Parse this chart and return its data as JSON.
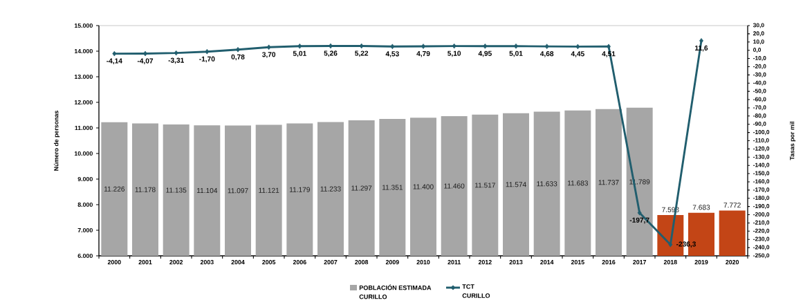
{
  "chart_data": {
    "type": "bar",
    "categories": [
      "2000",
      "2001",
      "2002",
      "2003",
      "2004",
      "2005",
      "2006",
      "2007",
      "2008",
      "2009",
      "2010",
      "2011",
      "2012",
      "2013",
      "2014",
      "2015",
      "2016",
      "2017",
      "2018",
      "2019",
      "2020"
    ],
    "series": [
      {
        "name": "POBLACIÓN ESTIMADA CURILLO",
        "colors": [
          "#a6a6a6",
          "#a6a6a6",
          "#a6a6a6",
          "#a6a6a6",
          "#a6a6a6",
          "#a6a6a6",
          "#a6a6a6",
          "#a6a6a6",
          "#a6a6a6",
          "#a6a6a6",
          "#a6a6a6",
          "#a6a6a6",
          "#a6a6a6",
          "#a6a6a6",
          "#a6a6a6",
          "#a6a6a6",
          "#a6a6a6",
          "#a6a6a6",
          "#c34516",
          "#c34516",
          "#c34516"
        ],
        "values": [
          11226,
          11178,
          11135,
          11104,
          11097,
          11121,
          11179,
          11233,
          11297,
          11351,
          11400,
          11460,
          11517,
          11574,
          11633,
          11683,
          11737,
          11789,
          7593,
          7683,
          7772
        ],
        "value_labels": [
          "11.226",
          "11.178",
          "11.135",
          "11.104",
          "11.097",
          "11.121",
          "11.179",
          "11.233",
          "11.297",
          "11.351",
          "11.400",
          "11.460",
          "11.517",
          "11.574",
          "11.633",
          "11.683",
          "11.737",
          "11.789",
          "7.593",
          "7.683",
          "7.772"
        ]
      },
      {
        "name": "TCT CURILLO",
        "type": "line",
        "axis": "y2",
        "color": "#215e6e",
        "values": [
          -4.14,
          -4.07,
          -3.31,
          -1.7,
          0.78,
          3.7,
          5.01,
          5.26,
          5.22,
          4.53,
          4.79,
          5.1,
          4.95,
          5.01,
          4.68,
          4.45,
          4.51,
          -197.7,
          -236.3,
          11.6,
          null
        ],
        "value_labels": [
          "-4,14",
          "-4,07",
          "-3,31",
          "-1,70",
          "0,78",
          "3,70",
          "5,01",
          "5,26",
          "5,22",
          "4,53",
          "4,79",
          "5,10",
          "4,95",
          "5,01",
          "4,68",
          "4,45",
          "4,51",
          "-197,7",
          "-236,3",
          "11,6",
          null
        ]
      }
    ],
    "ylabel": "Número de personas",
    "y2label": "Tasas por mil",
    "ylim": [
      6000,
      15000
    ],
    "yticks": [
      {
        "value": 6000,
        "label": "6.000"
      },
      {
        "value": 7000,
        "label": "7.000"
      },
      {
        "value": 8000,
        "label": "8.000"
      },
      {
        "value": 9000,
        "label": "9.000"
      },
      {
        "value": 10000,
        "label": "10.000"
      },
      {
        "value": 11000,
        "label": "11.000"
      },
      {
        "value": 12000,
        "label": "12.000"
      },
      {
        "value": 13000,
        "label": "13.000"
      },
      {
        "value": 14000,
        "label": "14.000"
      },
      {
        "value": 15000,
        "label": "15.000"
      }
    ],
    "y2lim": [
      -250,
      30
    ],
    "y2ticks": [
      {
        "value": -250,
        "label": "-250,0"
      },
      {
        "value": -240,
        "label": "-240,0"
      },
      {
        "value": -230,
        "label": "-230,0"
      },
      {
        "value": -220,
        "label": "-220,0"
      },
      {
        "value": -210,
        "label": "-210,0"
      },
      {
        "value": -200,
        "label": "-200,0"
      },
      {
        "value": -190,
        "label": "-190,0"
      },
      {
        "value": -180,
        "label": "-180,0"
      },
      {
        "value": -170,
        "label": "-170,0"
      },
      {
        "value": -160,
        "label": "-160,0"
      },
      {
        "value": -150,
        "label": "-150,0"
      },
      {
        "value": -140,
        "label": "-140,0"
      },
      {
        "value": -130,
        "label": "-130,0"
      },
      {
        "value": -120,
        "label": "-120,0"
      },
      {
        "value": -110,
        "label": "-110,0"
      },
      {
        "value": -100,
        "label": "-100,0"
      },
      {
        "value": -90,
        "label": "-90,0"
      },
      {
        "value": -80,
        "label": "-80,0"
      },
      {
        "value": -70,
        "label": "-70,0"
      },
      {
        "value": -60,
        "label": "-60,0"
      },
      {
        "value": -50,
        "label": "-50,0"
      },
      {
        "value": -40,
        "label": "-40,0"
      },
      {
        "value": -30,
        "label": "-30,0"
      },
      {
        "value": -20,
        "label": "-20,0"
      },
      {
        "value": -10,
        "label": "-10,0"
      },
      {
        "value": 0,
        "label": "0,0"
      },
      {
        "value": 10,
        "label": "10,0"
      },
      {
        "value": 20,
        "label": "20,0"
      },
      {
        "value": 30,
        "label": "30,0"
      }
    ],
    "legend": "bottom",
    "marker": "diamond",
    "line_style": "solid"
  }
}
